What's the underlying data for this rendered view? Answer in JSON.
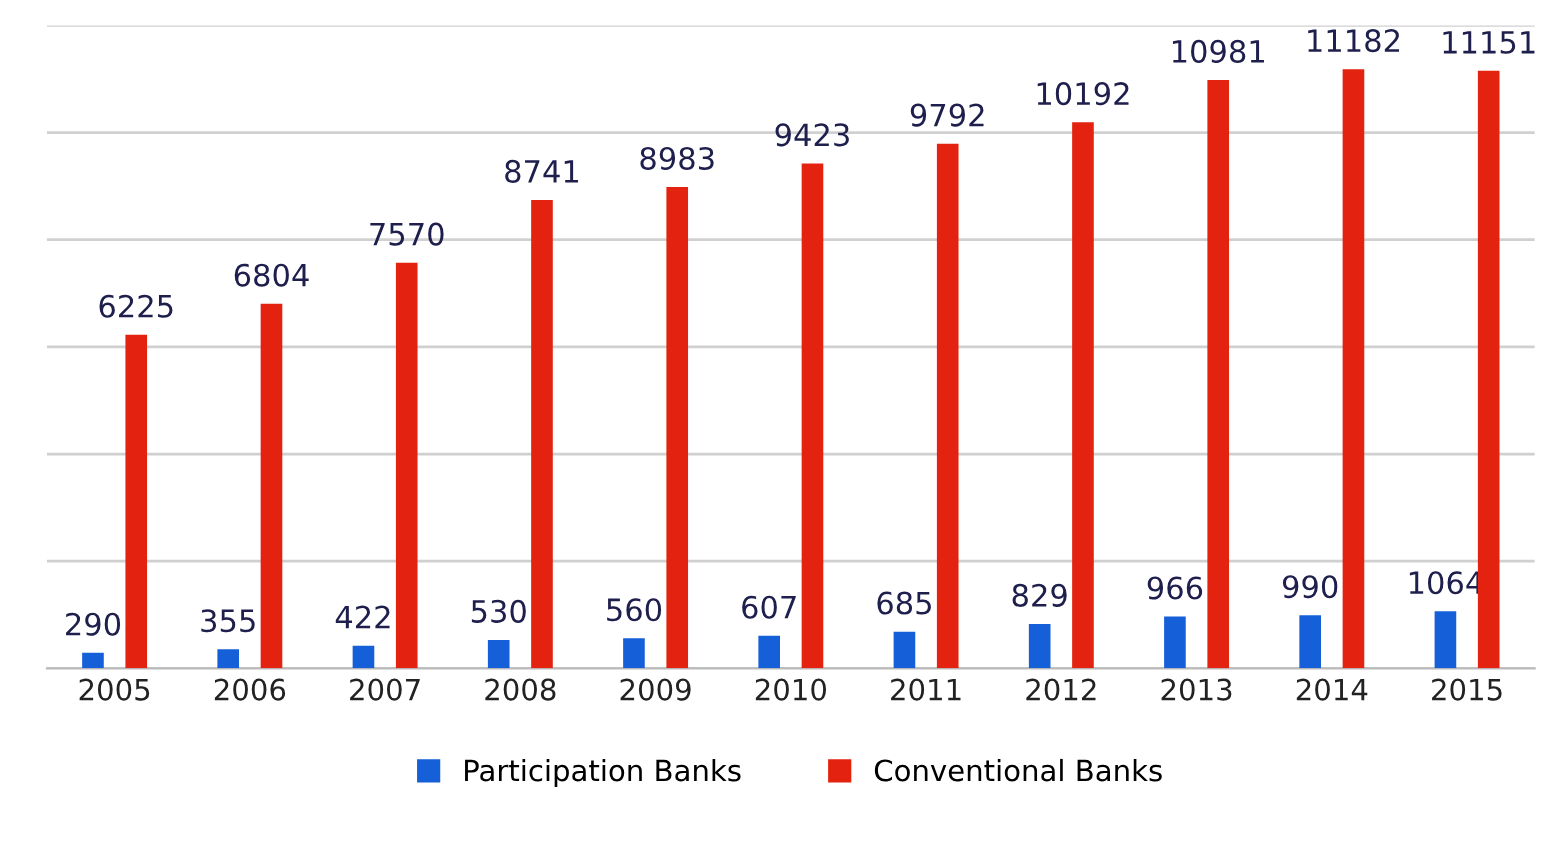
{
  "chart_data": {
    "type": "bar",
    "categories": [
      "2005",
      "2006",
      "2007",
      "2008",
      "2009",
      "2010",
      "2011",
      "2012",
      "2013",
      "2014",
      "2015"
    ],
    "series": [
      {
        "name": "Participation Banks",
        "color": "#1560d8",
        "values": [
          290,
          355,
          422,
          530,
          560,
          607,
          685,
          829,
          966,
          990,
          1064
        ]
      },
      {
        "name": "Conventional Banks",
        "color": "#e3230f",
        "values": [
          6225,
          6804,
          7570,
          8741,
          8983,
          9423,
          9792,
          10192,
          10981,
          11182,
          11151
        ]
      }
    ],
    "ylim": [
      0,
      12000
    ],
    "yticks": [
      {
        "value": 0,
        "label": null
      },
      {
        "value": 2000,
        "label": null
      },
      {
        "value": 4000,
        "label": null
      },
      {
        "value": 6000,
        "label": null
      },
      {
        "value": 8000,
        "label": null
      },
      {
        "value": 10000,
        "label": null
      },
      {
        "value": 12000,
        "label": null
      }
    ],
    "tick_labels": "x",
    "grid": "y",
    "legend": "bottom",
    "data_labels": true
  }
}
